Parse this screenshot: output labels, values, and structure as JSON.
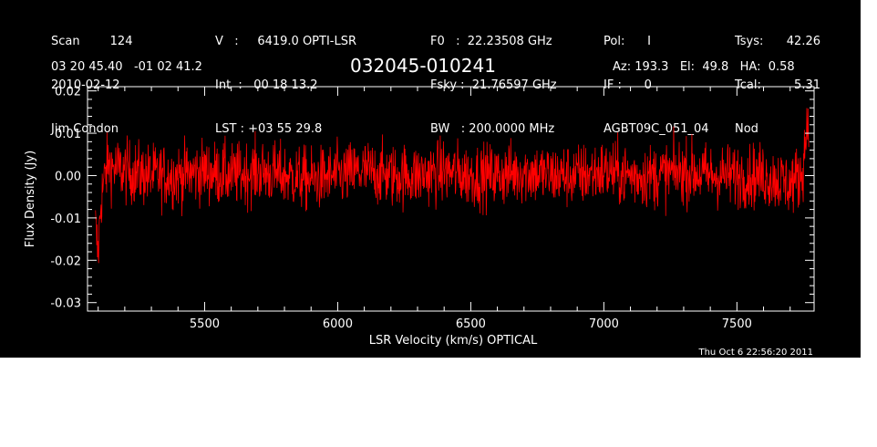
{
  "header": {
    "col1": [
      "Scan        124",
      "2010-02-12",
      "Jim Condon"
    ],
    "col2": [
      "V   :     6419.0 OPTI-LSR",
      "Int  :   00 18 13.2",
      "LST : +03 55 29.8"
    ],
    "col3": [
      "F0   :  22.23508 GHz",
      "Fsky :  21.76597 GHz",
      "BW   : 200.0000 MHz"
    ],
    "col4": [
      "Pol:      I",
      "IF :      0",
      "AGBT09C_051_04"
    ],
    "col5": [
      "Tsys:",
      "Tcal:",
      "Nod"
    ],
    "col5_values": [
      "42.26",
      "5.31",
      ""
    ],
    "coords": "03 20 45.40   -01 02 41.2",
    "source_name": "032045-010241",
    "azel": "Az: 193.3   El:  49.8   HA:  0.58",
    "timestamp": "Thu Oct  6 22:56:20 2011"
  },
  "colors": {
    "background": "#000000",
    "foreground": "#ffffff",
    "series": "#ff0000"
  },
  "chart_data": {
    "type": "line",
    "title": "032045-010241",
    "xlabel": "LSR Velocity (km/s) OPTICAL",
    "ylabel": "Flux Density (Jy)",
    "xlim": [
      5060,
      7790
    ],
    "ylim": [
      -0.032,
      0.021
    ],
    "xticks": [
      5500,
      6000,
      6500,
      7000,
      7500
    ],
    "xtick_labels": [
      "5500",
      "6000",
      "6500",
      "7000",
      "7500"
    ],
    "yticks": [
      0.02,
      0.01,
      0.0,
      -0.01,
      -0.02,
      -0.03
    ],
    "ytick_labels": [
      "0.02",
      "0.01",
      "0.00",
      "-0.01",
      "-0.02",
      "-0.03"
    ],
    "grid": false,
    "series": [
      {
        "x": [
          5090,
          5100,
          5110,
          5120,
          5130,
          5140,
          5150,
          5200,
          5300,
          5400,
          5500,
          5600,
          5700,
          5800,
          5900,
          6000,
          6100,
          6200,
          6300,
          6400,
          6500,
          6600,
          6700,
          6800,
          6900,
          7000,
          7100,
          7200,
          7300,
          7400,
          7500,
          7600,
          7650,
          7700,
          7720,
          7740,
          7750,
          7760,
          7770
        ],
        "y": [
          -0.012,
          -0.019,
          -0.006,
          -0.002,
          0.001,
          0.003,
          0.002,
          0.001,
          0.0,
          0.0,
          0.001,
          0.0,
          0.001,
          0.0,
          -0.001,
          0.0,
          0.001,
          0.0,
          0.0,
          0.001,
          0.0,
          0.0,
          0.001,
          0.0,
          0.0,
          0.001,
          0.0,
          0.0,
          0.001,
          0.0,
          0.0,
          0.0,
          -0.001,
          -0.002,
          -0.001,
          0.0,
          0.003,
          0.01,
          0.016
        ]
      }
    ]
  }
}
